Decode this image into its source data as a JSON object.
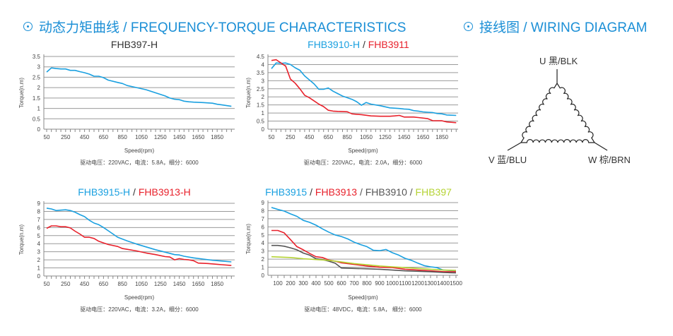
{
  "headers": {
    "torque": "动态力矩曲线 / FREQUENCY-TORQUE CHARACTERISTICS",
    "wiring": "接线图 / WIRING DIAGRAM",
    "icon": "circle-dot-icon",
    "color": "#1b8fd6"
  },
  "wiring": {
    "connection": "delta",
    "u_label": "U 黑/BLK",
    "v_label": "V 蓝/BLU",
    "w_label": "W 棕/BRN"
  },
  "chart_data": [
    {
      "type": "line",
      "title_parts": [
        {
          "text": "FHB397-H",
          "color": "#333333"
        }
      ],
      "xlabel": "Speed(rpm)",
      "ylabel": "Torque(n.m)",
      "caption": "驱动电压：220VAC，电流：5.8A，细分：6000",
      "ylim": [
        0,
        3.5
      ],
      "yticks": [
        "0",
        "0.5",
        "1",
        "1.5",
        "2",
        "2.5",
        "3",
        "3.5"
      ],
      "xticks": [
        "50",
        "250",
        "450",
        "650",
        "850",
        "1050",
        "1250",
        "1450",
        "1650",
        "1850"
      ],
      "grid": true,
      "series": [
        {
          "name": "FHB397-H",
          "color": "#1aa0e0",
          "x": [
            50,
            100,
            150,
            200,
            250,
            300,
            350,
            400,
            450,
            500,
            550,
            600,
            650,
            700,
            800,
            850,
            900,
            1000,
            1100,
            1200,
            1300,
            1350,
            1400,
            1450,
            1500,
            1550,
            1600,
            1700,
            1800,
            1850,
            1900,
            2000
          ],
          "y": [
            2.75,
            2.95,
            2.92,
            2.9,
            2.9,
            2.83,
            2.83,
            2.77,
            2.72,
            2.65,
            2.55,
            2.55,
            2.48,
            2.36,
            2.25,
            2.2,
            2.1,
            2.0,
            1.9,
            1.75,
            1.6,
            1.5,
            1.44,
            1.42,
            1.35,
            1.32,
            1.3,
            1.28,
            1.25,
            1.2,
            1.17,
            1.1
          ]
        }
      ]
    },
    {
      "type": "line",
      "title_parts": [
        {
          "text": "FHB3910-H",
          "color": "#1aa0e0"
        },
        {
          "text": " / ",
          "color": "#333333"
        },
        {
          "text": "FHB3911",
          "color": "#e8212b"
        }
      ],
      "xlabel": "Speed(rpm)",
      "ylabel": "Torque(n.m)",
      "caption": "驱动电压：220VAC，电流：2.0A，细分：6000",
      "ylim": [
        0,
        4.5
      ],
      "yticks": [
        "0",
        "0.5",
        "1",
        "1.5",
        "2",
        "2.5",
        "3",
        "3.5",
        "4",
        "4.5"
      ],
      "xticks": [
        "50",
        "250",
        "450",
        "650",
        "850",
        "1050",
        "1250",
        "1450",
        "1650",
        "1850"
      ],
      "grid": true,
      "series": [
        {
          "name": "FHB3910-H",
          "color": "#1aa0e0",
          "x": [
            50,
            100,
            150,
            200,
            250,
            300,
            350,
            400,
            450,
            500,
            550,
            600,
            650,
            700,
            750,
            800,
            850,
            900,
            950,
            1000,
            1050,
            1100,
            1200,
            1300,
            1400,
            1450,
            1500,
            1550,
            1600,
            1650,
            1700,
            1750,
            1800,
            1850,
            1900,
            2000
          ],
          "y": [
            3.75,
            4.1,
            4.07,
            4.1,
            4.0,
            3.8,
            3.65,
            3.3,
            3.05,
            2.8,
            2.47,
            2.47,
            2.55,
            2.35,
            2.2,
            2.05,
            1.95,
            1.85,
            1.7,
            1.48,
            1.65,
            1.55,
            1.45,
            1.32,
            1.28,
            1.25,
            1.23,
            1.15,
            1.12,
            1.07,
            1.05,
            1.03,
            0.97,
            0.95,
            0.88,
            0.85
          ]
        },
        {
          "name": "FHB3911",
          "color": "#e8212b",
          "x": [
            50,
            100,
            150,
            200,
            250,
            300,
            350,
            400,
            450,
            500,
            550,
            600,
            650,
            700,
            750,
            850,
            900,
            950,
            1000,
            1100,
            1200,
            1300,
            1350,
            1400,
            1450,
            1550,
            1600,
            1700,
            1750,
            1850,
            1900,
            2000
          ],
          "y": [
            4.25,
            4.3,
            4.1,
            3.9,
            3.1,
            2.85,
            2.5,
            2.1,
            1.95,
            1.75,
            1.55,
            1.4,
            1.17,
            1.12,
            1.1,
            1.08,
            0.95,
            0.92,
            0.9,
            0.82,
            0.8,
            0.8,
            0.82,
            0.85,
            0.75,
            0.75,
            0.72,
            0.65,
            0.53,
            0.52,
            0.45,
            0.4
          ]
        }
      ]
    },
    {
      "type": "line",
      "title_parts": [
        {
          "text": "FHB3915-H",
          "color": "#1aa0e0"
        },
        {
          "text": " / ",
          "color": "#333333"
        },
        {
          "text": "FHB3913-H",
          "color": "#e8212b"
        }
      ],
      "xlabel": "Speed(rpm)",
      "ylabel": "Torque(n.m)",
      "caption": "驱动电压：220VAC，电流：3.2A，细分：6000",
      "ylim": [
        0,
        9
      ],
      "yticks": [
        "0",
        "1",
        "2",
        "3",
        "4",
        "5",
        "6",
        "7",
        "8",
        "9"
      ],
      "xticks": [
        "50",
        "250",
        "450",
        "650",
        "850",
        "1050",
        "1250",
        "1450",
        "1650",
        "1850"
      ],
      "grid": true,
      "series": [
        {
          "name": "FHB3915-H",
          "color": "#1aa0e0",
          "x": [
            50,
            100,
            150,
            200,
            250,
            300,
            350,
            400,
            450,
            500,
            550,
            600,
            650,
            700,
            750,
            800,
            900,
            1000,
            1100,
            1200,
            1300,
            1400,
            1450,
            1500,
            1600,
            1700,
            1800,
            1900,
            2000
          ],
          "y": [
            8.4,
            8.3,
            8.1,
            8.15,
            8.2,
            8.1,
            7.9,
            7.6,
            7.35,
            6.9,
            6.55,
            6.35,
            6.0,
            5.6,
            5.2,
            4.8,
            4.35,
            3.95,
            3.6,
            3.25,
            2.95,
            2.65,
            2.6,
            2.45,
            2.25,
            2.1,
            1.95,
            1.85,
            1.75
          ]
        },
        {
          "name": "FHB3913-H",
          "color": "#e8212b",
          "x": [
            50,
            100,
            150,
            200,
            250,
            300,
            350,
            400,
            450,
            500,
            550,
            600,
            650,
            700,
            800,
            850,
            900,
            1000,
            1100,
            1200,
            1300,
            1350,
            1400,
            1450,
            1500,
            1550,
            1600,
            1650,
            1750,
            1850,
            1900,
            2000
          ],
          "y": [
            5.9,
            6.2,
            6.2,
            6.1,
            6.1,
            5.95,
            5.55,
            5.2,
            4.8,
            4.8,
            4.65,
            4.3,
            4.1,
            3.9,
            3.65,
            3.4,
            3.3,
            3.1,
            2.85,
            2.65,
            2.4,
            2.35,
            2.0,
            2.15,
            2.05,
            2.0,
            1.9,
            1.6,
            1.55,
            1.45,
            1.4,
            1.3
          ]
        }
      ]
    },
    {
      "type": "line",
      "title_parts": [
        {
          "text": "FHB3915",
          "color": "#1aa0e0"
        },
        {
          "text": " / ",
          "color": "#333333"
        },
        {
          "text": "FHB3913",
          "color": "#e8212b"
        },
        {
          "text": " / FHB3910 / ",
          "color": "#555555"
        },
        {
          "text": "FHB397",
          "color": "#b5d334"
        }
      ],
      "xlabel": "Speed(rpm)",
      "ylabel": "Torque(n.m)",
      "caption": "驱动电压：48VDC，电流：5.8A， 细分：6000",
      "ylim": [
        0,
        9
      ],
      "yticks": [
        "0",
        "1",
        "2",
        "3",
        "4",
        "5",
        "6",
        "7",
        "8",
        "9"
      ],
      "xticks": [
        "100",
        "200",
        "300",
        "400",
        "500",
        "600",
        "700",
        "800",
        "900",
        "1000",
        "1100",
        "1200",
        "1300",
        "1400",
        "1500"
      ],
      "grid": true,
      "series": [
        {
          "name": "FHB3915",
          "color": "#1aa0e0",
          "x": [
            50,
            100,
            150,
            200,
            250,
            300,
            350,
            400,
            450,
            500,
            550,
            600,
            650,
            700,
            750,
            800,
            850,
            900,
            950,
            1000,
            1050,
            1100,
            1150,
            1200,
            1250,
            1300,
            1350,
            1400,
            1450,
            1500
          ],
          "y": [
            8.4,
            8.15,
            7.95,
            7.6,
            7.3,
            6.8,
            6.55,
            6.2,
            5.75,
            5.35,
            5.0,
            4.8,
            4.5,
            4.1,
            3.8,
            3.55,
            3.1,
            3.05,
            3.2,
            2.8,
            2.5,
            2.1,
            1.85,
            1.5,
            1.2,
            1.05,
            0.95,
            0.65,
            0.6,
            0.55
          ]
        },
        {
          "name": "FHB3913",
          "color": "#e8212b",
          "x": [
            50,
            100,
            150,
            200,
            250,
            300,
            350,
            400,
            450,
            500,
            550,
            600,
            700,
            800,
            900,
            1000,
            1100,
            1200,
            1300,
            1400,
            1500
          ],
          "y": [
            5.55,
            5.55,
            5.25,
            4.4,
            3.55,
            3.15,
            2.7,
            2.3,
            2.2,
            1.9,
            1.75,
            1.55,
            1.35,
            1.15,
            1.0,
            0.95,
            0.75,
            0.65,
            0.55,
            0.45,
            0.45
          ]
        },
        {
          "name": "FHB3910",
          "color": "#555555",
          "x": [
            50,
            100,
            150,
            200,
            250,
            300,
            350,
            400,
            450,
            500,
            550,
            600,
            700,
            800,
            900,
            1000,
            1100,
            1200,
            1300,
            1400,
            1500
          ],
          "y": [
            3.7,
            3.7,
            3.6,
            3.4,
            3.15,
            2.75,
            2.5,
            2.05,
            1.95,
            1.75,
            1.5,
            0.9,
            0.85,
            0.8,
            0.75,
            0.65,
            0.55,
            0.5,
            0.45,
            0.35,
            0.3
          ]
        },
        {
          "name": "FHB397",
          "color": "#b5d334",
          "x": [
            50,
            200,
            300,
            400,
            500,
            600,
            700,
            800,
            900,
            1000,
            1100,
            1200,
            1300,
            1400,
            1500
          ],
          "y": [
            2.3,
            2.2,
            2.05,
            1.95,
            1.85,
            1.65,
            1.45,
            1.3,
            1.15,
            1.05,
            0.95,
            0.85,
            0.75,
            0.65,
            0.6
          ]
        }
      ]
    }
  ]
}
